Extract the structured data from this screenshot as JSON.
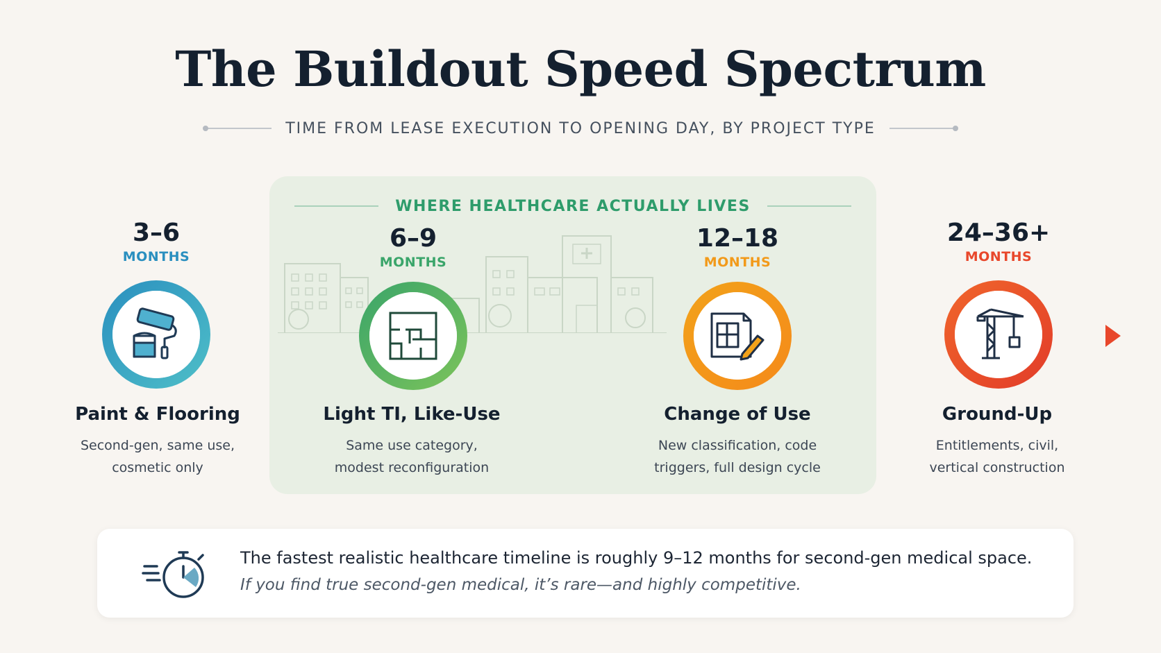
{
  "header": {
    "title": "The Buildout Speed Spectrum",
    "subtitle": "TIME FROM LEASE EXECUTION TO OPENING DAY, BY PROJECT TYPE"
  },
  "highlight": {
    "label": "WHERE HEALTHCARE ACTUALLY LIVES",
    "color": "#2e9c6b"
  },
  "stages": [
    {
      "duration": "3–6",
      "unit": "MONTHS",
      "name": "Paint & Flooring",
      "desc_line1": "Second-gen, same use,",
      "desc_line2": "cosmetic only",
      "color": "#2a8fbf",
      "icon": "paint-roller-icon"
    },
    {
      "duration": "6–9",
      "unit": "MONTHS",
      "name": "Light TI, Like-Use",
      "desc_line1": "Same use category,",
      "desc_line2": "modest reconfiguration",
      "color": "#3aa56a",
      "icon": "floor-plan-icon"
    },
    {
      "duration": "12–18",
      "unit": "MONTHS",
      "name": "Change of Use",
      "desc_line1": "New classification, code",
      "desc_line2": "triggers, full design cycle",
      "color": "#f29a1a",
      "icon": "blueprint-pencil-icon"
    },
    {
      "duration": "24–36+",
      "unit": "MONTHS",
      "name": "Ground-Up",
      "desc_line1": "Entitlements, civil,",
      "desc_line2": "vertical construction",
      "color": "#e8472b",
      "icon": "construction-crane-icon"
    }
  ],
  "callout": {
    "main": "The fastest realistic healthcare timeline is roughly 9–12 months for second-gen medical space.",
    "sub": "If you find true second-gen medical, it’s rare—and highly competitive.",
    "icon": "stopwatch-icon"
  }
}
